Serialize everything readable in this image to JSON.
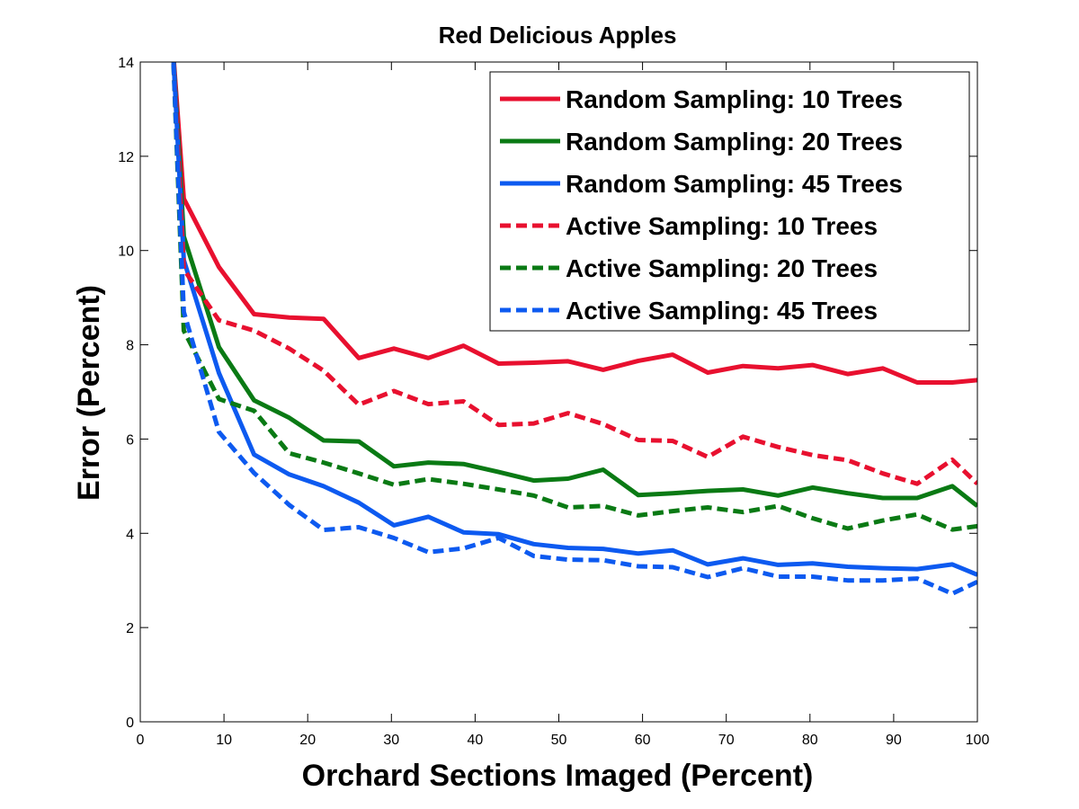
{
  "chart_data": {
    "type": "line",
    "title": "Red Delicious Apples",
    "xlabel": "Orchard Sections Imaged (Percent)",
    "ylabel": "Error (Percent)",
    "xlim": [
      0,
      100
    ],
    "ylim": [
      0,
      14
    ],
    "xticks": [
      0,
      10,
      20,
      30,
      40,
      50,
      60,
      70,
      80,
      90,
      100
    ],
    "yticks": [
      0,
      2,
      4,
      6,
      8,
      10,
      12,
      14
    ],
    "grid": false,
    "legend_position": "top-right",
    "series": [
      {
        "name": "Random Sampling: 10 Trees",
        "color": "#e8102f",
        "dash": "solid",
        "x": [
          3.9,
          5.2,
          9.4,
          13.6,
          17.8,
          21.9,
          26.1,
          30.3,
          34.4,
          38.6,
          42.8,
          47.0,
          51.1,
          55.3,
          59.5,
          63.6,
          67.8,
          72.0,
          76.2,
          80.3,
          84.5,
          88.7,
          92.8,
          97.0,
          100
        ],
        "y": [
          14.3,
          11.1,
          9.65,
          8.65,
          8.58,
          8.55,
          7.72,
          7.92,
          7.72,
          7.98,
          7.6,
          7.62,
          7.65,
          7.47,
          7.66,
          7.79,
          7.41,
          7.55,
          7.5,
          7.57,
          7.38,
          7.5,
          7.2,
          7.2,
          7.25
        ]
      },
      {
        "name": "Random Sampling: 20 Trees",
        "color": "#0a7a14",
        "dash": "solid",
        "x": [
          3.9,
          5.2,
          9.4,
          13.6,
          17.8,
          21.9,
          26.1,
          30.3,
          34.4,
          38.6,
          42.8,
          47.0,
          51.1,
          55.3,
          59.5,
          63.6,
          67.8,
          72.0,
          76.2,
          80.3,
          84.5,
          88.7,
          92.8,
          97.0,
          100
        ],
        "y": [
          14.3,
          10.3,
          7.95,
          6.82,
          6.45,
          5.97,
          5.95,
          5.42,
          5.5,
          5.47,
          5.3,
          5.12,
          5.16,
          5.35,
          4.81,
          4.85,
          4.9,
          4.93,
          4.8,
          4.97,
          4.85,
          4.75,
          4.75,
          5.0,
          4.58
        ]
      },
      {
        "name": "Random Sampling: 45 Trees",
        "color": "#0d5af0",
        "dash": "solid",
        "x": [
          3.9,
          5.2,
          9.4,
          13.6,
          17.8,
          21.9,
          26.1,
          30.3,
          34.4,
          38.6,
          42.8,
          47.0,
          51.1,
          55.3,
          59.5,
          63.6,
          67.8,
          72.0,
          76.2,
          80.3,
          84.5,
          88.7,
          92.8,
          97.0,
          100
        ],
        "y": [
          14.3,
          9.8,
          7.4,
          5.67,
          5.25,
          5.0,
          4.65,
          4.17,
          4.35,
          4.02,
          3.98,
          3.77,
          3.69,
          3.67,
          3.57,
          3.64,
          3.34,
          3.47,
          3.33,
          3.36,
          3.29,
          3.26,
          3.24,
          3.34,
          3.12
        ]
      },
      {
        "name": "Active Sampling: 10 Trees",
        "color": "#e8102f",
        "dash": "dashed",
        "x": [
          3.9,
          5.2,
          9.4,
          13.6,
          17.8,
          21.9,
          26.1,
          30.3,
          34.4,
          38.6,
          42.8,
          47.0,
          51.1,
          55.3,
          59.5,
          63.6,
          67.8,
          72.0,
          76.2,
          80.3,
          84.5,
          88.7,
          92.8,
          97.0,
          100
        ],
        "y": [
          14.3,
          9.6,
          8.52,
          8.3,
          7.92,
          7.45,
          6.73,
          7.02,
          6.74,
          6.8,
          6.3,
          6.33,
          6.55,
          6.32,
          5.98,
          5.96,
          5.62,
          6.05,
          5.83,
          5.66,
          5.55,
          5.27,
          5.05,
          5.56,
          5.05
        ]
      },
      {
        "name": "Active Sampling: 20 Trees",
        "color": "#0a7a14",
        "dash": "dashed",
        "x": [
          3.9,
          5.2,
          9.4,
          13.6,
          17.8,
          21.9,
          26.1,
          30.3,
          34.4,
          38.6,
          42.8,
          47.0,
          51.1,
          55.3,
          59.5,
          63.6,
          67.8,
          72.0,
          76.2,
          80.3,
          84.5,
          88.7,
          92.8,
          97.0,
          100
        ],
        "y": [
          14.3,
          8.3,
          6.85,
          6.6,
          5.7,
          5.5,
          5.27,
          5.03,
          5.15,
          5.05,
          4.93,
          4.8,
          4.55,
          4.58,
          4.38,
          4.47,
          4.55,
          4.45,
          4.58,
          4.32,
          4.1,
          4.27,
          4.4,
          4.08,
          4.15
        ]
      },
      {
        "name": "Active Sampling: 45 Trees",
        "color": "#0d5af0",
        "dash": "dashed",
        "x": [
          3.9,
          5.2,
          9.4,
          13.6,
          17.8,
          21.9,
          26.1,
          30.3,
          34.4,
          38.6,
          42.8,
          47.0,
          51.1,
          55.3,
          59.5,
          63.6,
          67.8,
          72.0,
          76.2,
          80.3,
          84.5,
          88.7,
          92.8,
          97.0,
          100
        ],
        "y": [
          14.3,
          8.7,
          6.15,
          5.28,
          4.6,
          4.07,
          4.13,
          3.9,
          3.6,
          3.68,
          3.9,
          3.52,
          3.44,
          3.43,
          3.3,
          3.28,
          3.07,
          3.26,
          3.08,
          3.08,
          3.0,
          3.0,
          3.04,
          2.72,
          2.97
        ]
      }
    ]
  }
}
